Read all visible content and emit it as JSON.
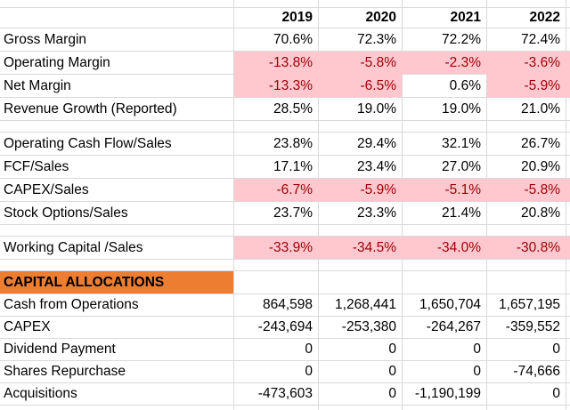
{
  "sheet_title": "Financial ratios and capital allocations spreadsheet",
  "columns": [
    "2019",
    "2020",
    "2021",
    "2022"
  ],
  "colors": {
    "pink_fill": "#FFC7CE",
    "red_text": "#9C0006",
    "orange_fill": "#ED7D31",
    "gridline": "#D9D9D9",
    "text": "#000000",
    "background": "#FFFFFF"
  },
  "rows": [
    {
      "kind": "spacer_top"
    },
    {
      "kind": "header"
    },
    {
      "kind": "data",
      "label": "Gross Margin",
      "values": [
        "70.6%",
        "72.3%",
        "72.2%",
        "72.4%"
      ],
      "pink": [
        false,
        false,
        false,
        false
      ]
    },
    {
      "kind": "data",
      "label": "Operating Margin",
      "values": [
        "-13.8%",
        "-5.8%",
        "-2.3%",
        "-3.6%"
      ],
      "pink": [
        true,
        true,
        true,
        true
      ]
    },
    {
      "kind": "data",
      "label": "Net Margin",
      "values": [
        "-13.3%",
        "-6.5%",
        "0.6%",
        "-5.9%"
      ],
      "pink": [
        true,
        true,
        false,
        true
      ]
    },
    {
      "kind": "data",
      "label": "Revenue Growth (Reported)",
      "values": [
        "28.5%",
        "19.0%",
        "19.0%",
        "21.0%"
      ],
      "pink": [
        false,
        false,
        false,
        false
      ]
    },
    {
      "kind": "blank"
    },
    {
      "kind": "data",
      "label": "Operating Cash Flow/Sales",
      "values": [
        "23.8%",
        "29.4%",
        "32.1%",
        "26.7%"
      ],
      "pink": [
        false,
        false,
        false,
        false
      ]
    },
    {
      "kind": "data",
      "label": "FCF/Sales",
      "values": [
        "17.1%",
        "23.4%",
        "27.0%",
        "20.9%"
      ],
      "pink": [
        false,
        false,
        false,
        false
      ]
    },
    {
      "kind": "data",
      "label": "CAPEX/Sales",
      "values": [
        "-6.7%",
        "-5.9%",
        "-5.1%",
        "-5.8%"
      ],
      "pink": [
        true,
        true,
        true,
        true
      ]
    },
    {
      "kind": "data",
      "label": "Stock Options/Sales",
      "values": [
        "23.7%",
        "23.3%",
        "21.4%",
        "20.8%"
      ],
      "pink": [
        false,
        false,
        false,
        false
      ]
    },
    {
      "kind": "blank"
    },
    {
      "kind": "data",
      "label": "Working Capital /Sales",
      "values": [
        "-33.9%",
        "-34.5%",
        "-34.0%",
        "-30.8%"
      ],
      "pink": [
        true,
        true,
        true,
        true
      ]
    },
    {
      "kind": "blank"
    },
    {
      "kind": "section",
      "label": "CAPITAL ALLOCATIONS"
    },
    {
      "kind": "data",
      "compact": true,
      "label": "Cash from Operations",
      "values": [
        "864,598",
        "1,268,441",
        "1,650,704",
        "1,657,195"
      ],
      "pink": [
        false,
        false,
        false,
        false
      ]
    },
    {
      "kind": "data",
      "compact": true,
      "label": "CAPEX",
      "values": [
        "-243,694",
        "-253,380",
        "-264,267",
        "-359,552"
      ],
      "pink": [
        false,
        false,
        false,
        false
      ]
    },
    {
      "kind": "data",
      "compact": true,
      "label": "Dividend Payment",
      "values": [
        "0",
        "0",
        "0",
        "0"
      ],
      "pink": [
        false,
        false,
        false,
        false
      ]
    },
    {
      "kind": "data",
      "compact": true,
      "label": "Shares Repurchase",
      "values": [
        "0",
        "0",
        "0",
        "-74,666"
      ],
      "pink": [
        false,
        false,
        false,
        false
      ]
    },
    {
      "kind": "data",
      "compact": true,
      "label": "Acquisitions",
      "values": [
        "-473,603",
        "0",
        "-1,190,199",
        "0"
      ],
      "pink": [
        false,
        false,
        false,
        false
      ]
    },
    {
      "kind": "spacer_bottom"
    }
  ]
}
